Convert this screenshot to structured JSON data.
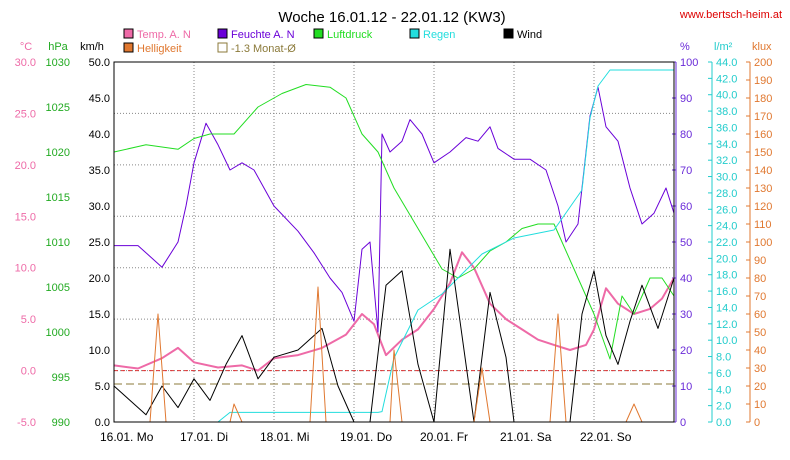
{
  "chart_data": {
    "type": "line",
    "title": "Woche 16.01.12 - 22.01.12 (KW3)",
    "source": "www.bertsch-heim.at",
    "x_day_labels": [
      "16.01. Mo",
      "17.01. Di",
      "18.01. Mi",
      "19.01. Do",
      "20.01. Fr",
      "21.01. Sa",
      "22.01. So"
    ],
    "x_range_days": [
      0,
      7
    ],
    "axes": {
      "temp": {
        "unit": "°C",
        "min": -5,
        "max": 30,
        "ticks": [
          "-5.0",
          "0.0",
          "5.0",
          "10.0",
          "15.0",
          "20.0",
          "25.0",
          "30.0"
        ],
        "color": "#ee6aa7"
      },
      "press": {
        "unit": "hPa",
        "min": 990,
        "max": 1030,
        "ticks": [
          "990",
          "995",
          "1000",
          "1005",
          "1010",
          "1015",
          "1020",
          "1025",
          "1030"
        ],
        "color": "#22aa22"
      },
      "wind": {
        "unit": "km/h",
        "min": 0,
        "max": 50,
        "ticks": [
          "0.0",
          "5.0",
          "10.0",
          "15.0",
          "20.0",
          "25.0",
          "30.0",
          "35.0",
          "40.0",
          "45.0",
          "50.0"
        ],
        "color": "#000000"
      },
      "hum": {
        "unit": "%",
        "min": 0,
        "max": 100,
        "ticks": [
          "0",
          "10",
          "20",
          "30",
          "40",
          "50",
          "60",
          "70",
          "80",
          "90",
          "100"
        ],
        "color": "#6a2bd8"
      },
      "rain": {
        "unit": "l/m²",
        "min": 0,
        "max": 45,
        "ticks": [
          "0.0",
          "2.0",
          "4.0",
          "6.0",
          "8.0",
          "10.0",
          "12.0",
          "14.0",
          "16.0",
          "18.0",
          "20.0",
          "22.0",
          "24.0",
          "26.0",
          "28.0",
          "30.0",
          "32.0",
          "34.0",
          "36.0",
          "38.0",
          "40.0",
          "42.0",
          "44.0"
        ],
        "color": "#22cccc"
      },
      "lux": {
        "unit": "klux",
        "min": 0,
        "max": 200,
        "ticks": [
          "0",
          "10",
          "20",
          "30",
          "40",
          "50",
          "60",
          "70",
          "80",
          "90",
          "100",
          "110",
          "120",
          "130",
          "140",
          "150",
          "160",
          "170",
          "180",
          "190",
          "200"
        ],
        "color": "#e07830"
      }
    },
    "legend": [
      {
        "name": "Temp. A. N",
        "color": "#ee6aa7"
      },
      {
        "name": "Feuchte A. N",
        "color": "#6a00d8"
      },
      {
        "name": "Luftdruck",
        "color": "#22dd22"
      },
      {
        "name": "Regen",
        "color": "#22dddd"
      },
      {
        "name": "Wind",
        "color": "#000000"
      },
      {
        "name": "Helligkeit",
        "color": "#e07830"
      },
      {
        "name": "-1.3 Monat-Ø",
        "color": "#8b7a3a"
      }
    ],
    "monthly_avg_temp": -1.3,
    "series": [
      {
        "name": "Temp. A. N",
        "axis": "temp",
        "points": [
          [
            0,
            0.5
          ],
          [
            0.3,
            0.2
          ],
          [
            0.6,
            1.2
          ],
          [
            0.8,
            2.2
          ],
          [
            1.0,
            0.8
          ],
          [
            1.3,
            0.3
          ],
          [
            1.6,
            0.5
          ],
          [
            1.8,
            0.0
          ],
          [
            2.0,
            1.2
          ],
          [
            2.3,
            1.5
          ],
          [
            2.6,
            2.2
          ],
          [
            2.9,
            3.5
          ],
          [
            3.1,
            5.5
          ],
          [
            3.25,
            4.5
          ],
          [
            3.4,
            1.5
          ],
          [
            3.6,
            3.0
          ],
          [
            3.8,
            4.0
          ],
          [
            4.0,
            6.0
          ],
          [
            4.2,
            8.5
          ],
          [
            4.35,
            11.5
          ],
          [
            4.5,
            10.0
          ],
          [
            4.7,
            6.5
          ],
          [
            4.9,
            5.0
          ],
          [
            5.1,
            4.0
          ],
          [
            5.3,
            3.0
          ],
          [
            5.5,
            2.5
          ],
          [
            5.7,
            2.0
          ],
          [
            5.9,
            2.5
          ],
          [
            6.0,
            4.0
          ],
          [
            6.15,
            8.0
          ],
          [
            6.3,
            6.5
          ],
          [
            6.5,
            5.5
          ],
          [
            6.7,
            6.0
          ],
          [
            6.85,
            7.0
          ],
          [
            7.0,
            9.0
          ]
        ]
      },
      {
        "name": "Feuchte A. N",
        "axis": "hum",
        "points": [
          [
            0,
            49
          ],
          [
            0.3,
            49
          ],
          [
            0.6,
            43
          ],
          [
            0.8,
            50
          ],
          [
            0.9,
            60
          ],
          [
            1.0,
            72
          ],
          [
            1.15,
            83
          ],
          [
            1.3,
            77
          ],
          [
            1.45,
            70
          ],
          [
            1.6,
            72
          ],
          [
            1.75,
            70
          ],
          [
            2.0,
            60
          ],
          [
            2.3,
            53
          ],
          [
            2.5,
            47
          ],
          [
            2.7,
            40
          ],
          [
            2.85,
            36
          ],
          [
            3.0,
            28
          ],
          [
            3.1,
            48
          ],
          [
            3.2,
            50
          ],
          [
            3.3,
            25
          ],
          [
            3.35,
            80
          ],
          [
            3.45,
            75
          ],
          [
            3.6,
            78
          ],
          [
            3.7,
            84
          ],
          [
            3.85,
            80
          ],
          [
            4.0,
            72
          ],
          [
            4.2,
            75
          ],
          [
            4.4,
            79
          ],
          [
            4.55,
            78
          ],
          [
            4.7,
            82
          ],
          [
            4.8,
            76
          ],
          [
            5.0,
            73
          ],
          [
            5.2,
            73
          ],
          [
            5.4,
            70
          ],
          [
            5.55,
            60
          ],
          [
            5.65,
            50
          ],
          [
            5.8,
            55
          ],
          [
            5.95,
            85
          ],
          [
            6.05,
            93
          ],
          [
            6.15,
            82
          ],
          [
            6.3,
            78
          ],
          [
            6.45,
            65
          ],
          [
            6.6,
            55
          ],
          [
            6.75,
            58
          ],
          [
            6.9,
            65
          ],
          [
            7.0,
            58
          ]
        ]
      },
      {
        "name": "Luftdruck",
        "axis": "press",
        "points": [
          [
            0,
            1020
          ],
          [
            0.4,
            1020.8
          ],
          [
            0.8,
            1020.3
          ],
          [
            1.0,
            1021.5
          ],
          [
            1.2,
            1022
          ],
          [
            1.5,
            1022
          ],
          [
            1.8,
            1025
          ],
          [
            2.1,
            1026.5
          ],
          [
            2.4,
            1027.5
          ],
          [
            2.7,
            1027.2
          ],
          [
            2.9,
            1026
          ],
          [
            3.1,
            1022
          ],
          [
            3.3,
            1020
          ],
          [
            3.5,
            1016
          ],
          [
            3.7,
            1013
          ],
          [
            3.9,
            1010
          ],
          [
            4.1,
            1007
          ],
          [
            4.3,
            1006
          ],
          [
            4.5,
            1007
          ],
          [
            4.7,
            1009
          ],
          [
            4.9,
            1010
          ],
          [
            5.1,
            1011.5
          ],
          [
            5.3,
            1012
          ],
          [
            5.5,
            1012
          ],
          [
            5.6,
            1010
          ],
          [
            5.8,
            1006
          ],
          [
            6.0,
            1002
          ],
          [
            6.2,
            997
          ],
          [
            6.35,
            1004
          ],
          [
            6.5,
            1002
          ],
          [
            6.7,
            1006
          ],
          [
            6.85,
            1006
          ],
          [
            7.0,
            1004
          ]
        ]
      },
      {
        "name": "Regen",
        "axis": "rain",
        "points": [
          [
            0,
            0
          ],
          [
            1.3,
            0
          ],
          [
            1.45,
            1.2
          ],
          [
            3.3,
            1.2
          ],
          [
            3.35,
            1.3
          ],
          [
            3.5,
            8
          ],
          [
            3.8,
            14
          ],
          [
            4.1,
            16
          ],
          [
            4.3,
            18
          ],
          [
            4.6,
            21
          ],
          [
            5.0,
            23
          ],
          [
            5.5,
            24
          ],
          [
            5.85,
            29
          ],
          [
            5.95,
            38
          ],
          [
            6.05,
            42
          ],
          [
            6.2,
            44
          ],
          [
            7.0,
            44
          ]
        ]
      },
      {
        "name": "Wind",
        "axis": "wind",
        "points": [
          [
            0,
            5
          ],
          [
            0.2,
            3
          ],
          [
            0.4,
            1
          ],
          [
            0.6,
            5
          ],
          [
            0.8,
            2
          ],
          [
            1.0,
            6
          ],
          [
            1.2,
            3
          ],
          [
            1.4,
            8
          ],
          [
            1.6,
            12
          ],
          [
            1.8,
            6
          ],
          [
            2.0,
            9
          ],
          [
            2.3,
            10
          ],
          [
            2.6,
            13
          ],
          [
            2.8,
            5
          ],
          [
            3.0,
            0
          ],
          [
            3.2,
            0
          ],
          [
            3.4,
            19
          ],
          [
            3.6,
            21
          ],
          [
            3.8,
            8
          ],
          [
            4.0,
            0
          ],
          [
            4.2,
            24
          ],
          [
            4.35,
            12
          ],
          [
            4.5,
            0
          ],
          [
            4.7,
            18
          ],
          [
            4.9,
            9
          ],
          [
            5.0,
            0
          ],
          [
            5.3,
            0
          ],
          [
            5.5,
            0
          ],
          [
            5.7,
            0
          ],
          [
            5.85,
            15
          ],
          [
            6.0,
            21
          ],
          [
            6.15,
            12
          ],
          [
            6.3,
            8
          ],
          [
            6.45,
            14
          ],
          [
            6.6,
            19
          ],
          [
            6.8,
            13
          ],
          [
            7.0,
            20
          ]
        ]
      },
      {
        "name": "Helligkeit",
        "axis": "lux",
        "points": [
          [
            0,
            0
          ],
          [
            0.45,
            0
          ],
          [
            0.55,
            60
          ],
          [
            0.65,
            0
          ],
          [
            1.45,
            0
          ],
          [
            1.5,
            10
          ],
          [
            1.6,
            0
          ],
          [
            2.45,
            0
          ],
          [
            2.55,
            75
          ],
          [
            2.65,
            0
          ],
          [
            3.45,
            0
          ],
          [
            3.5,
            40
          ],
          [
            3.6,
            0
          ],
          [
            4.5,
            0
          ],
          [
            4.6,
            30
          ],
          [
            4.7,
            0
          ],
          [
            5.45,
            0
          ],
          [
            5.55,
            60
          ],
          [
            5.65,
            0
          ],
          [
            6.4,
            0
          ],
          [
            6.5,
            10
          ],
          [
            6.6,
            0
          ],
          [
            7.0,
            0
          ]
        ]
      }
    ]
  }
}
